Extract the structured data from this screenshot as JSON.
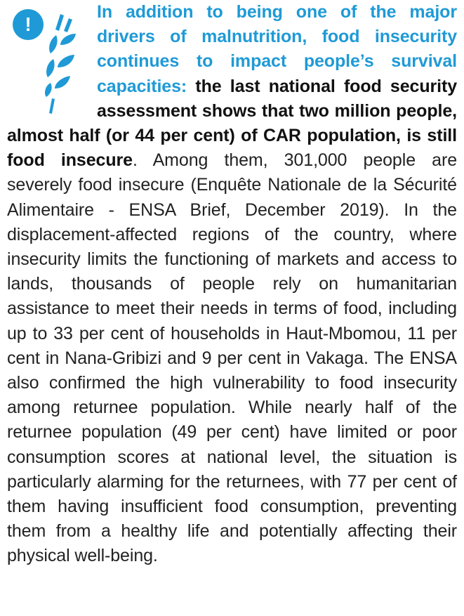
{
  "icon": {
    "mark": "!"
  },
  "paragraph": {
    "lead": "In addition to being one of the major drivers of malnutrition, food insecurity continues to impact people’s survival capacities:",
    "highlight": "the last national food security assessment shows that two million people, almost half (or 44 per cent) of CAR population, is still food insecure",
    "body": ". Among them, 301,000 people are severely food insecure (Enquête Nationale de la Sécurité Alimentaire - ENSA Brief, December 2019). In the displacement-affected regions of the country, where insecurity limits the functioning of markets and access to lands, thousands of people rely on humanitarian assistance to meet their needs in terms of food, including up to 33 per cent of households in Haut-Mbomou, 11 per cent in Nana-Gribizi and 9 per cent in Vakaga. The ENSA also confirmed the high vulnerability to food insecurity among returnee population. While nearly half of the returnee population (49 per cent) have limited or poor consumption scores at national level, the situation is particularly alarming for the returnees, with 77 per cent of them having insufficient food consumption, preventing them from a healthy life and potentially affecting their physical well-being."
  }
}
